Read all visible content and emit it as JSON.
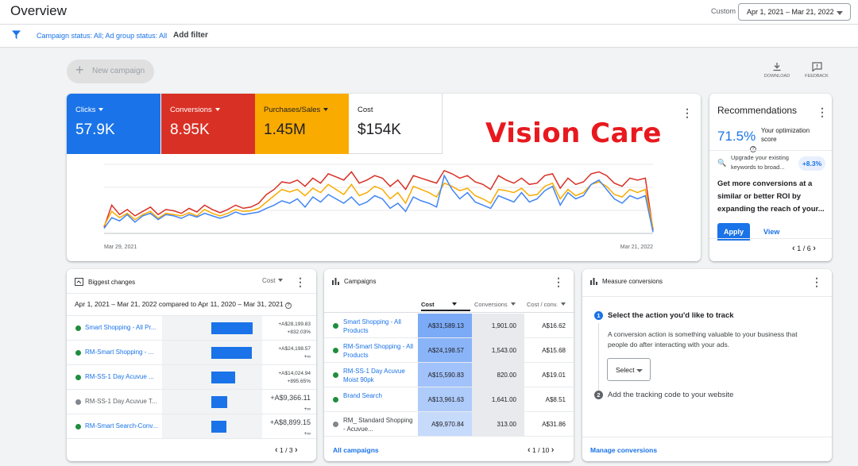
{
  "header": {
    "title": "Overview",
    "custom_label": "Custom",
    "date_range": "Apr 1, 2021 – Mar 21, 2022"
  },
  "filter": {
    "text": "Campaign status: All; Ad group status: All",
    "add_filter": "Add filter"
  },
  "toolbar": {
    "new_campaign": "New campaign",
    "download": "DOWNLOAD",
    "feedback": "FEEDBACK"
  },
  "metrics": [
    {
      "label": "Clicks",
      "value": "57.9K",
      "color": "#1a73e8"
    },
    {
      "label": "Conversions",
      "value": "8.95K",
      "color": "#d93025"
    },
    {
      "label": "Purchases/Sales",
      "value": "1.45M",
      "color": "#f9ab00"
    },
    {
      "label": "Cost",
      "value": "$154K",
      "color": "#ffffff"
    }
  ],
  "overlay_text": "Vision Care",
  "chart_data": {
    "type": "line",
    "x_start": "Mar 29, 2021",
    "x_end": "Mar 21, 2022",
    "series": [
      {
        "color": "#d93025",
        "values": [
          10,
          45,
          30,
          38,
          28,
          35,
          42,
          30,
          38,
          36,
          32,
          40,
          34,
          45,
          38,
          33,
          38,
          45,
          40,
          42,
          48,
          62,
          70,
          82,
          80,
          85,
          75,
          88,
          80,
          95,
          90,
          85,
          98,
          80,
          85,
          92,
          88,
          75,
          85,
          70,
          92,
          88,
          84,
          80,
          100,
          95,
          88,
          92,
          82,
          78,
          70,
          92,
          85,
          80,
          88,
          78,
          80,
          92,
          95,
          72,
          88,
          78,
          82,
          95,
          98,
          92,
          80,
          75,
          88,
          85,
          88,
          5
        ]
      },
      {
        "color": "#f9ab00",
        "values": [
          12,
          35,
          25,
          32,
          22,
          30,
          35,
          24,
          32,
          30,
          28,
          33,
          28,
          38,
          32,
          28,
          32,
          38,
          35,
          36,
          40,
          50,
          60,
          70,
          66,
          70,
          60,
          72,
          65,
          78,
          70,
          62,
          78,
          60,
          65,
          75,
          70,
          55,
          65,
          48,
          75,
          70,
          65,
          58,
          80,
          75,
          68,
          72,
          60,
          55,
          48,
          70,
          68,
          65,
          72,
          60,
          62,
          75,
          80,
          55,
          70,
          60,
          65,
          78,
          82,
          75,
          62,
          58,
          70,
          65,
          70,
          8
        ]
      },
      {
        "color": "#4285f4",
        "values": [
          8,
          25,
          20,
          30,
          18,
          28,
          32,
          22,
          30,
          28,
          24,
          30,
          26,
          32,
          28,
          24,
          28,
          34,
          30,
          32,
          34,
          40,
          45,
          52,
          48,
          55,
          42,
          58,
          50,
          62,
          55,
          48,
          58,
          45,
          50,
          60,
          55,
          40,
          48,
          35,
          58,
          52,
          48,
          42,
          92,
          70,
          55,
          65,
          50,
          45,
          40,
          60,
          55,
          50,
          65,
          50,
          55,
          68,
          75,
          45,
          65,
          55,
          60,
          78,
          85,
          70,
          55,
          48,
          60,
          55,
          60,
          2
        ]
      }
    ],
    "ylim": [
      0,
      110
    ]
  },
  "recommendations": {
    "title": "Recommendations",
    "score": "71.5%",
    "score_label": "Your optimization score",
    "item_text": "Upgrade your existing keywords to broad...",
    "item_badge": "+8.3%",
    "body": "Get more conversions at a similar or better ROI by expanding the reach of your...",
    "apply": "Apply",
    "view": "View",
    "pager": "1 / 6"
  },
  "biggest_changes": {
    "title": "Biggest changes",
    "sort": "Cost",
    "range": "Apr 1, 2021 – Mar 21, 2022 compared to Apr 11, 2020 – Mar 31, 2021",
    "rows": [
      {
        "name": "Smart Shopping - All Pr...",
        "v1": "+A$28,199.83",
        "v2": "+832.03%",
        "bar": 1.0,
        "status": "#1e8e3e",
        "big": false
      },
      {
        "name": "RM-Smart Shopping - ...",
        "v1": "+A$24,198.57",
        "v2": "+∞",
        "bar": 0.98,
        "status": "#1e8e3e",
        "big": false
      },
      {
        "name": "RM-SS-1 Day Acuvue ...",
        "v1": "+A$14,024.94",
        "v2": "+895.65%",
        "bar": 0.58,
        "status": "#1e8e3e",
        "big": false
      },
      {
        "name": "RM-SS-1 Day Acuvue T...",
        "v1": "+A$9,366.11",
        "v2": "+∞",
        "bar": 0.38,
        "status": "#80868b",
        "big": true
      },
      {
        "name": "RM-Smart Search-Conv...",
        "v1": "+A$8,899.15",
        "v2": "+∞",
        "bar": 0.36,
        "status": "#1e8e3e",
        "big": true
      }
    ],
    "pager": "1 / 3"
  },
  "campaigns": {
    "title": "Campaigns",
    "headers": [
      "Cost",
      "Conversions",
      "Cost / conv."
    ],
    "rows": [
      {
        "name": "Smart Shopping - All Products",
        "cost": "A$31,589.13",
        "conv": "1,901.00",
        "cpc": "A$16.62",
        "status": "#1e8e3e",
        "link": true,
        "shade": "#7baaf7"
      },
      {
        "name": "RM-Smart Shopping - All Products",
        "cost": "A$24,198.57",
        "conv": "1,543.00",
        "cpc": "A$15.68",
        "status": "#1e8e3e",
        "link": true,
        "shade": "#8ab4f8"
      },
      {
        "name": "RM-SS-1 Day Acuvue Moist 90pk",
        "cost": "A$15,590.83",
        "conv": "820.00",
        "cpc": "A$19.01",
        "status": "#1e8e3e",
        "link": true,
        "shade": "#a1c2fa"
      },
      {
        "name": "Brand Search",
        "cost": "A$13,961.63",
        "conv": "1,641.00",
        "cpc": "A$8.51",
        "status": "#1e8e3e",
        "link": true,
        "shade": "#aecbfa"
      },
      {
        "name": "RM_ Standard Shopping - Acuvue...",
        "cost": "A$9,970.84",
        "conv": "313.00",
        "cpc": "A$31.86",
        "status": "#80868b",
        "link": false,
        "shade": "#c6dafc"
      }
    ],
    "all_link": "All campaigns",
    "pager": "1 / 10"
  },
  "measure": {
    "title": "Measure conversions",
    "step1": "Select the action you'd like to track",
    "desc": "A conversion action is something valuable to your business that people do after interacting with your ads.",
    "select": "Select",
    "step2": "Add the tracking code to your website",
    "manage": "Manage conversions"
  }
}
